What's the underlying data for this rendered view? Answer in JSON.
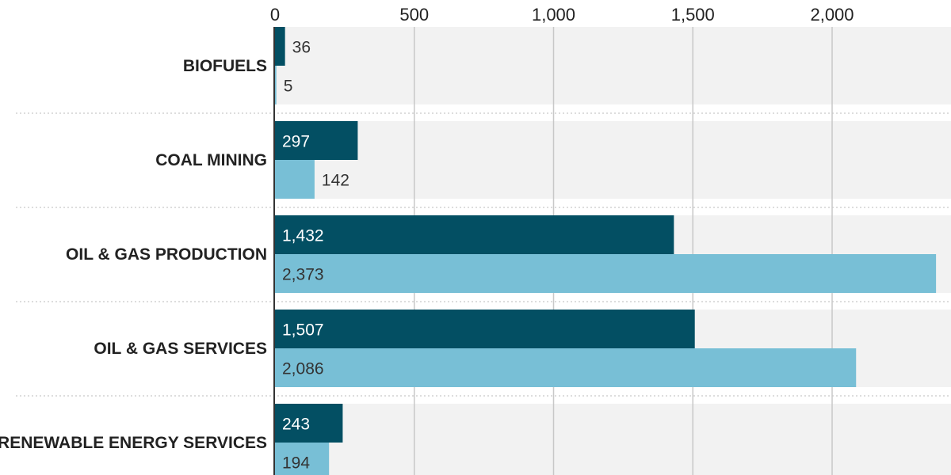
{
  "chart_data": {
    "type": "bar",
    "orientation": "horizontal",
    "categories": [
      "BIOFUELS",
      "COAL MINING",
      "OIL & GAS PRODUCTION",
      "OIL & GAS SERVICES",
      "RENEWABLE ENERGY SERVICES"
    ],
    "series": [
      {
        "values": [
          36,
          297,
          1432,
          1507,
          243
        ],
        "color": "#034f63",
        "value_labels": [
          "36",
          "297",
          "1,432",
          "1,507",
          "243"
        ]
      },
      {
        "values": [
          5,
          142,
          2373,
          2086,
          194
        ],
        "color": "#78bfd6",
        "value_labels": [
          "5",
          "142",
          "2,373",
          "2,086",
          "194"
        ]
      }
    ],
    "ticks": [
      0,
      500,
      1000,
      1500,
      2000
    ],
    "tick_labels": [
      "0",
      "500",
      "1,000",
      "1,500",
      "2,000"
    ],
    "xlim": [
      0,
      2373
    ],
    "grid": true,
    "axis_position": "top",
    "background_color": "#f2f2f2"
  }
}
